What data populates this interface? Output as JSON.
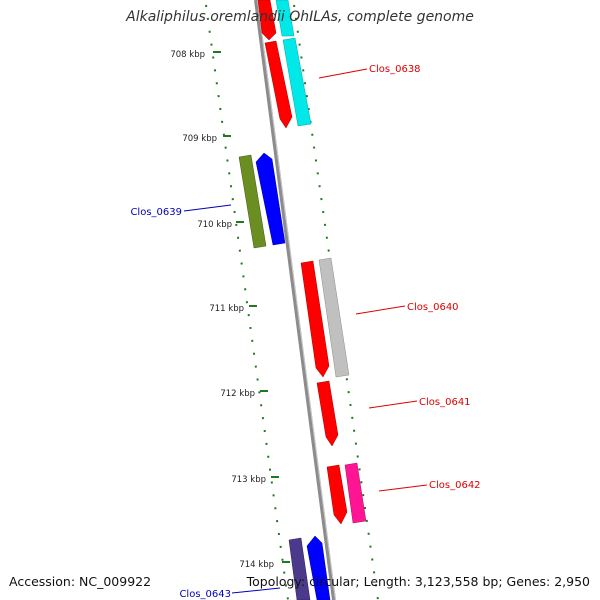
{
  "title": "Alkaliphilus oremlandii OhILAs, complete genome",
  "accession": "Accession: NC_009922",
  "summary": "Topology: circular; Length: 3,123,558 bp; Genes: 2,950",
  "colors": {
    "backbone": "#8c8c8c",
    "tick": "#1e7a1e",
    "label_red": "#dd0000",
    "label_blue": "#0000bb"
  },
  "ticks": [
    {
      "label": "708 kbp"
    },
    {
      "label": "709 kbp"
    },
    {
      "label": "710 kbp"
    },
    {
      "label": "711 kbp"
    },
    {
      "label": "712 kbp"
    },
    {
      "label": "713 kbp"
    },
    {
      "label": "714 kbp"
    }
  ],
  "gene_labels": [
    {
      "name": "Clos_0638",
      "color": "red"
    },
    {
      "name": "Clos_0639",
      "color": "blue"
    },
    {
      "name": "Clos_0640",
      "color": "red"
    },
    {
      "name": "Clos_0641",
      "color": "red"
    },
    {
      "name": "Clos_0642",
      "color": "red"
    },
    {
      "name": "Clos_0643",
      "color": "blue"
    }
  ]
}
